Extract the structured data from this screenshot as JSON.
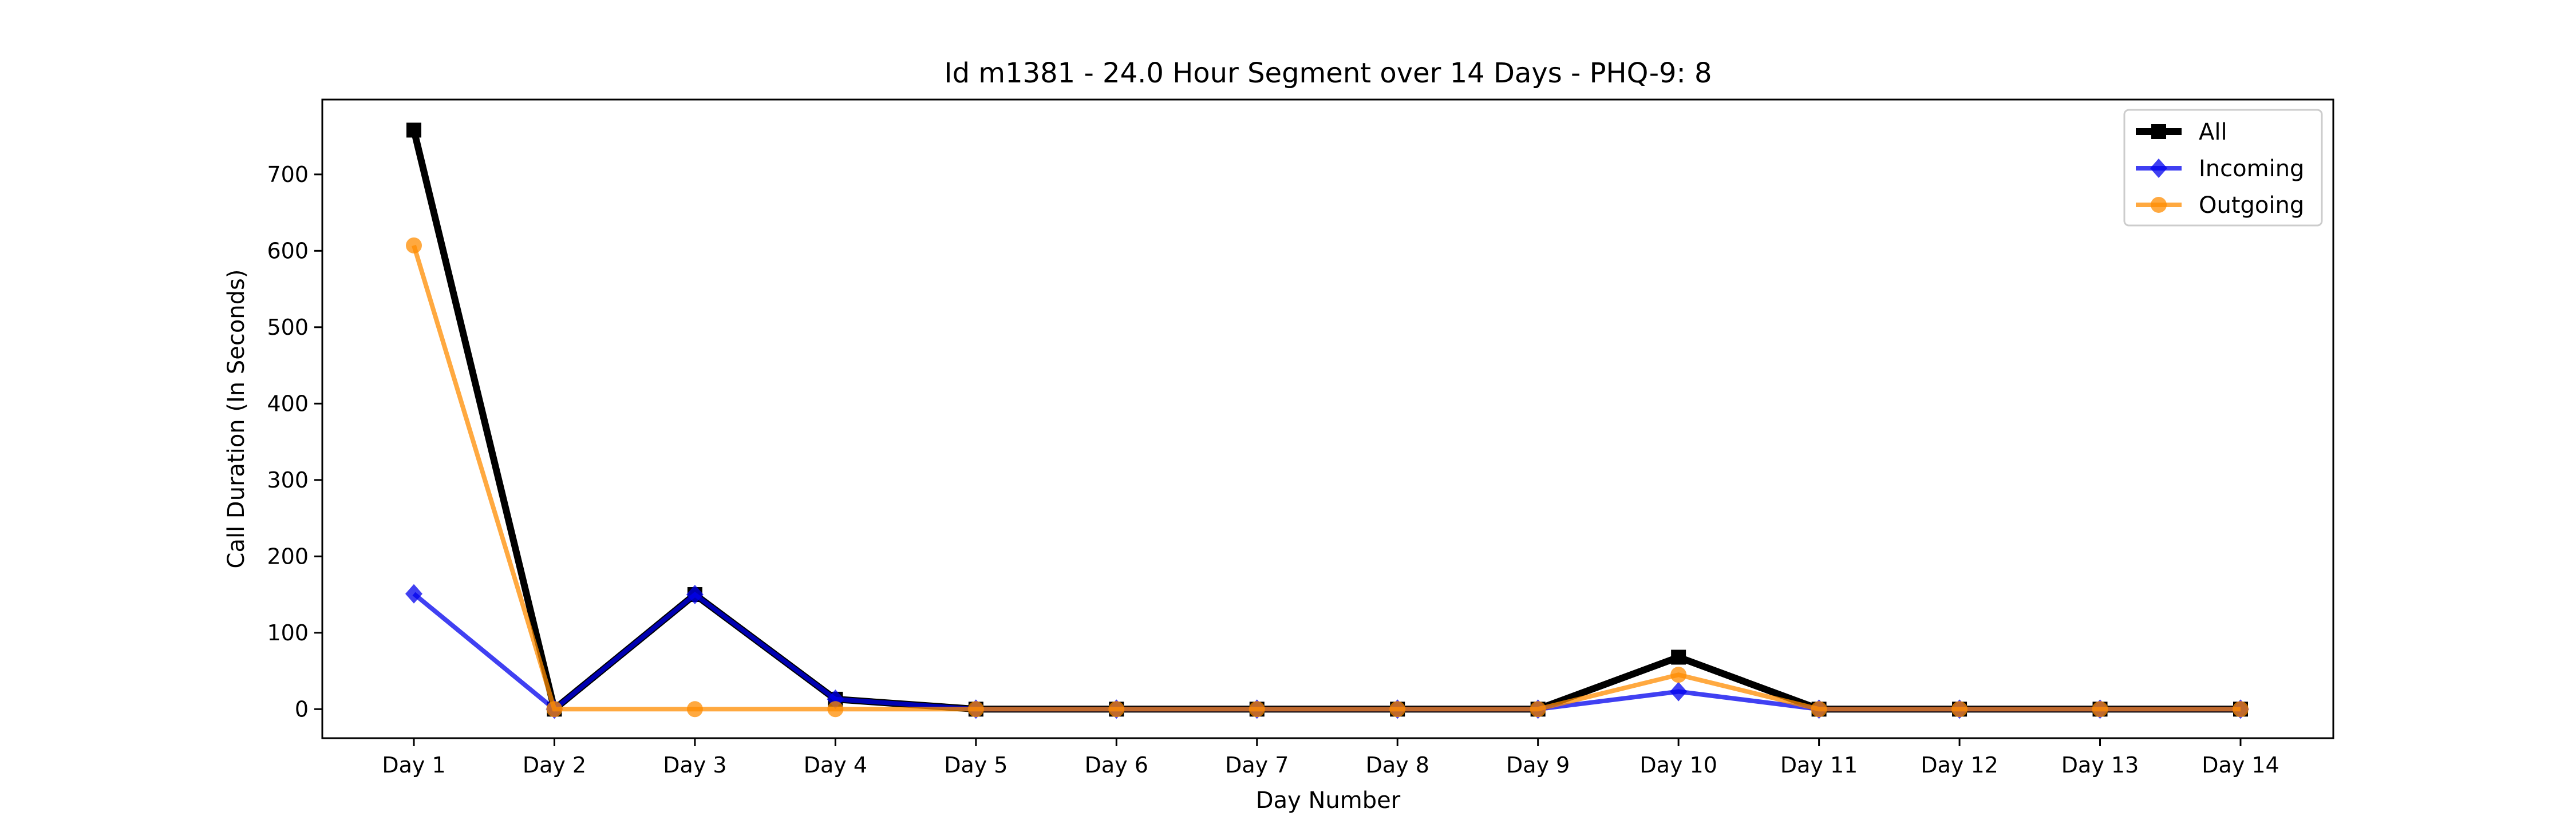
{
  "chart_data": {
    "type": "line",
    "title": "Id m1381 - 24.0 Hour Segment over 14 Days - PHQ-9: 8",
    "xlabel": "Day Number",
    "ylabel": "Call Duration (In Seconds)",
    "categories": [
      "Day 1",
      "Day 2",
      "Day 3",
      "Day 4",
      "Day 5",
      "Day 6",
      "Day 7",
      "Day 8",
      "Day 9",
      "Day 10",
      "Day 11",
      "Day 12",
      "Day 13",
      "Day 14"
    ],
    "ylim": [
      -38,
      798
    ],
    "yticks": [
      0,
      100,
      200,
      300,
      400,
      500,
      600,
      700
    ],
    "grid": false,
    "legend_position": "top-right",
    "series": [
      {
        "name": "All",
        "color": "#000000",
        "marker": "square",
        "values": [
          758,
          0,
          150,
          13,
          0,
          0,
          0,
          0,
          0,
          68,
          0,
          0,
          0,
          0
        ]
      },
      {
        "name": "Incoming",
        "color": "#0000ee",
        "marker": "diamond",
        "values": [
          151,
          0,
          150,
          13,
          0,
          0,
          0,
          0,
          0,
          23,
          0,
          0,
          0,
          0
        ]
      },
      {
        "name": "Outgoing",
        "color": "#ff8c00",
        "marker": "circle",
        "values": [
          607,
          0,
          0,
          0,
          0,
          0,
          0,
          0,
          0,
          45,
          0,
          0,
          0,
          0
        ]
      }
    ]
  }
}
